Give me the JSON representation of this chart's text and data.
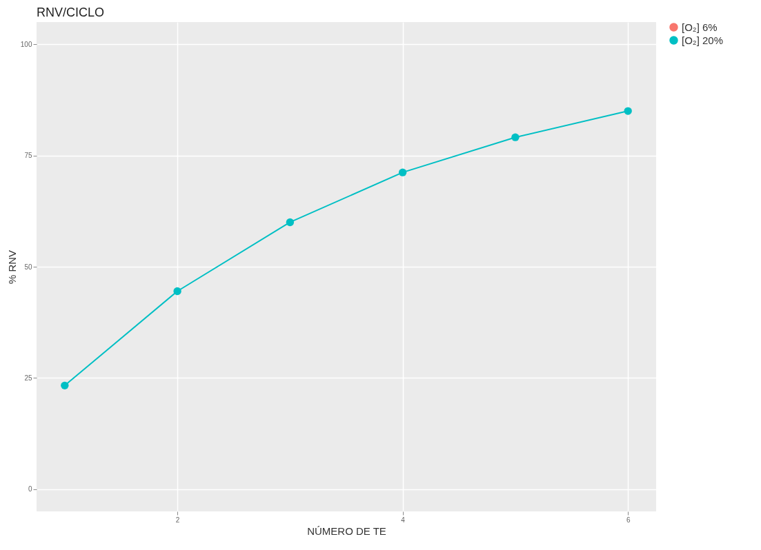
{
  "chart_data": {
    "type": "line",
    "title": "RNV/CICLO",
    "xlabel": "NÚMERO DE TE",
    "ylabel": "% RNV",
    "x": [
      1,
      2,
      3,
      4,
      5,
      6
    ],
    "series": [
      {
        "name": "[O₂] 6%",
        "color": "#f8766d",
        "values": [
          null,
          null,
          null,
          null,
          null,
          null
        ]
      },
      {
        "name": "[O₂] 20%",
        "color": "#00bfc4",
        "values": [
          23.3,
          44.5,
          60.0,
          71.2,
          79.1,
          85.0
        ]
      }
    ],
    "xlim": [
      0.75,
      6.25
    ],
    "xticks": [
      2,
      4,
      6
    ],
    "ylim": [
      -5,
      105
    ],
    "yticks": [
      0,
      25,
      50,
      75,
      100
    ],
    "grid": true,
    "legend": "right",
    "marker": "circle",
    "line_style": "solid"
  }
}
